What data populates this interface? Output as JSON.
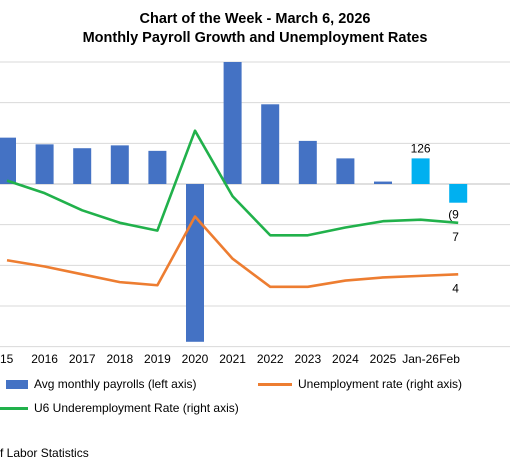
{
  "title": "Chart of the Week - March 6, 2026",
  "subtitle": "Monthly Payroll Growth and Unemployment Rates",
  "chart_data": {
    "type": "bar",
    "categories": [
      "15",
      "2016",
      "2017",
      "2018",
      "2019",
      "2020",
      "2021",
      "2022",
      "2023",
      "2024",
      "2025",
      "Jan-26",
      "Feb"
    ],
    "series": [
      {
        "name": "Avg monthly payrolls (left axis)",
        "axis": "left",
        "type": "bar",
        "values": [
          228,
          195,
          176,
          190,
          163,
          -776,
          600,
          392,
          212,
          126,
          12,
          126,
          -92
        ]
      },
      {
        "name": "Unemployment rate (right axis)",
        "axis": "right",
        "type": "line",
        "values": [
          5.3,
          4.9,
          4.4,
          3.9,
          3.7,
          8.1,
          5.4,
          3.6,
          3.6,
          4.0,
          4.2,
          4.3,
          4.4
        ]
      },
      {
        "name": "U6 Underemployment Rate (right axis)",
        "axis": "right",
        "type": "line",
        "values": [
          10.4,
          9.6,
          8.5,
          7.7,
          7.2,
          13.6,
          9.4,
          6.9,
          6.9,
          7.4,
          7.8,
          7.9,
          7.7
        ]
      }
    ],
    "bar_colors": [
      "#4472C4",
      "#4472C4",
      "#4472C4",
      "#4472C4",
      "#4472C4",
      "#4472C4",
      "#4472C4",
      "#4472C4",
      "#4472C4",
      "#4472C4",
      "#4472C4",
      "#00B0F0",
      "#00B0F0"
    ],
    "line_colors": [
      "#ED7D31",
      "#21B14B"
    ],
    "data_labels": [
      "126",
      "(9",
      "7",
      "4"
    ],
    "ylim_left": [
      -800,
      600
    ],
    "ylim_right": [
      0,
      18
    ],
    "grid": true,
    "legend_position": "bottom"
  },
  "source": "f Labor Statistics"
}
